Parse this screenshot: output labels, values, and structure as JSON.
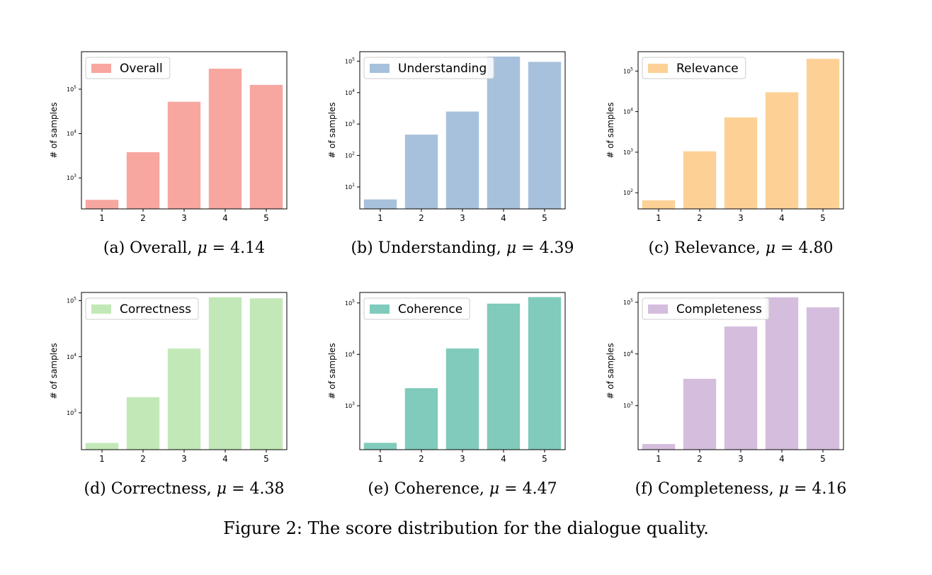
{
  "figure_caption": "Figure 2: The score distribution for the dialogue quality.",
  "chart_data": [
    {
      "type": "bar",
      "scale": "log",
      "categories": [
        "1",
        "2",
        "3",
        "4",
        "5"
      ],
      "values": [
        320,
        3800,
        52000,
        290000,
        125000
      ],
      "legend": "Overall",
      "color": "#f7a6a0",
      "ylabel": "# of samples",
      "ylim": [
        200,
        700000
      ],
      "yticks": [
        {
          "v": 1000,
          "b": "10",
          "e": "3"
        },
        {
          "v": 10000,
          "b": "10",
          "e": "4"
        },
        {
          "v": 100000,
          "b": "10",
          "e": "5"
        }
      ],
      "caption_prefix": "(a) Overall, ",
      "caption_mu": "μ",
      "caption_value": " = 4.14"
    },
    {
      "type": "bar",
      "scale": "log",
      "categories": [
        "1",
        "2",
        "3",
        "4",
        "5"
      ],
      "values": [
        4,
        460,
        2500,
        140000,
        95000
      ],
      "legend": "Understanding",
      "color": "#a7c1dc",
      "ylabel": "# of samples",
      "ylim": [
        2,
        200000
      ],
      "yticks": [
        {
          "v": 10,
          "b": "10",
          "e": "1"
        },
        {
          "v": 100,
          "b": "10",
          "e": "2"
        },
        {
          "v": 1000,
          "b": "10",
          "e": "3"
        },
        {
          "v": 10000,
          "b": "10",
          "e": "4"
        },
        {
          "v": 100000,
          "b": "10",
          "e": "5"
        }
      ],
      "caption_prefix": "(b) Understanding, ",
      "caption_mu": "μ",
      "caption_value": " = 4.39"
    },
    {
      "type": "bar",
      "scale": "log",
      "categories": [
        "1",
        "2",
        "3",
        "4",
        "5"
      ],
      "values": [
        65,
        1050,
        7200,
        30000,
        200000
      ],
      "legend": "Relevance",
      "color": "#fdd196",
      "ylabel": "# of samples",
      "ylim": [
        40,
        300000
      ],
      "yticks": [
        {
          "v": 100,
          "b": "10",
          "e": "2"
        },
        {
          "v": 1000,
          "b": "10",
          "e": "3"
        },
        {
          "v": 10000,
          "b": "10",
          "e": "4"
        },
        {
          "v": 100000,
          "b": "10",
          "e": "5"
        }
      ],
      "caption_prefix": "(c) Relevance, ",
      "caption_mu": "μ",
      "caption_value": " = 4.80"
    },
    {
      "type": "bar",
      "scale": "log",
      "categories": [
        "1",
        "2",
        "3",
        "4",
        "5"
      ],
      "values": [
        290,
        1900,
        14000,
        115000,
        110000
      ],
      "legend": "Correctness",
      "color": "#c2e8b7",
      "ylabel": "# of samples",
      "ylim": [
        220,
        140000
      ],
      "yticks": [
        {
          "v": 1000,
          "b": "10",
          "e": "3"
        },
        {
          "v": 10000,
          "b": "10",
          "e": "4"
        },
        {
          "v": 100000,
          "b": "10",
          "e": "5"
        }
      ],
      "caption_prefix": "(d) Correctness, ",
      "caption_mu": "μ",
      "caption_value": " = 4.38"
    },
    {
      "type": "bar",
      "scale": "log",
      "categories": [
        "1",
        "2",
        "3",
        "4",
        "5"
      ],
      "values": [
        190,
        2200,
        13000,
        97000,
        130000
      ],
      "legend": "Coherence",
      "color": "#80cbbb",
      "ylabel": "# of samples",
      "ylim": [
        140,
        160000
      ],
      "yticks": [
        {
          "v": 1000,
          "b": "10",
          "e": "3"
        },
        {
          "v": 10000,
          "b": "10",
          "e": "4"
        },
        {
          "v": 100000,
          "b": "10",
          "e": "5"
        }
      ],
      "caption_prefix": "(e) Coherence, ",
      "caption_mu": "μ",
      "caption_value": " = 4.47"
    },
    {
      "type": "bar",
      "scale": "log",
      "categories": [
        "1",
        "2",
        "3",
        "4",
        "5"
      ],
      "values": [
        180,
        3300,
        34000,
        125000,
        80000
      ],
      "legend": "Completeness",
      "color": "#d5bedd",
      "ylabel": "# of samples",
      "ylim": [
        140,
        155000
      ],
      "yticks": [
        {
          "v": 1000,
          "b": "10",
          "e": "3"
        },
        {
          "v": 10000,
          "b": "10",
          "e": "4"
        },
        {
          "v": 100000,
          "b": "10",
          "e": "5"
        }
      ],
      "caption_prefix": "(f) Completeness, ",
      "caption_mu": "μ",
      "caption_value": " = 4.16"
    }
  ]
}
